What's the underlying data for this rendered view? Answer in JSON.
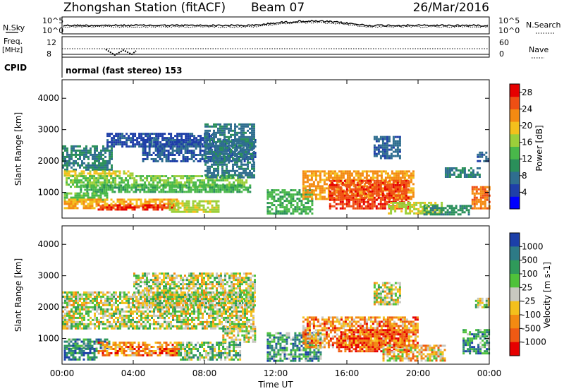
{
  "header": {
    "title": "Zhongshan Station (fitACF)",
    "beam": "Beam 07",
    "date": "26/Mar/2016"
  },
  "nsky_panel": {
    "left_label": "N.Sky",
    "left_top_tick": "10^5",
    "left_bottom_tick": "10^0",
    "right_label": "N.Search",
    "right_top_tick": "10^5",
    "right_bottom_tick": "10^0"
  },
  "freq_panel": {
    "left_label": "Freq.",
    "left_unit": "[MHz]",
    "left_top_tick": "12",
    "left_bottom_tick": "8",
    "right_label": "Nave",
    "right_top_tick": "60",
    "right_bottom_tick": "0"
  },
  "cpid_panel": {
    "label": "CPID",
    "text": "normal (fast stereo) 153"
  },
  "chart_data": [
    {
      "type": "heatmap",
      "title": "",
      "ylabel": "Slant Range [km]",
      "xlabel": "",
      "x_range_hours": [
        0,
        24
      ],
      "ylim": [
        180,
        4590
      ],
      "yticks": [
        "1000",
        "2000",
        "3000",
        "4000"
      ],
      "colorbar": {
        "label": "Power [dB]",
        "ticks": [
          "4",
          "8",
          "12",
          "16",
          "20",
          "24",
          "28"
        ],
        "range": [
          0,
          30
        ],
        "colors": [
          "#0000ff",
          "#1f3fa8",
          "#2f6e8f",
          "#2a8f5a",
          "#49b84a",
          "#9ccf3a",
          "#f4c01c",
          "#f48a12",
          "#ef4f14",
          "#e60000"
        ]
      },
      "regions": [
        {
          "t": [
            0.0,
            2.8
          ],
          "r": [
            1700,
            2500
          ],
          "level": 9
        },
        {
          "t": [
            0.1,
            4.0
          ],
          "r": [
            1500,
            1700
          ],
          "level": 19
        },
        {
          "t": [
            0.2,
            10.4
          ],
          "r": [
            1200,
            1550
          ],
          "level": 15
        },
        {
          "t": [
            1.0,
            10.6
          ],
          "r": [
            1000,
            1250
          ],
          "level": 13
        },
        {
          "t": [
            0.1,
            2.5
          ],
          "r": [
            750,
            1000
          ],
          "level": 14
        },
        {
          "t": [
            0.1,
            6.5
          ],
          "r": [
            500,
            800
          ],
          "level": 21
        },
        {
          "t": [
            2.0,
            6.3
          ],
          "r": [
            430,
            620
          ],
          "level": 27
        },
        {
          "t": [
            6.0,
            8.8
          ],
          "r": [
            380,
            750
          ],
          "level": 17
        },
        {
          "t": [
            4.5,
            10.8
          ],
          "r": [
            2000,
            2700
          ],
          "level": 6
        },
        {
          "t": [
            2.5,
            8.5
          ],
          "r": [
            2450,
            2900
          ],
          "level": 5
        },
        {
          "t": [
            8.0,
            10.8
          ],
          "r": [
            1500,
            3200
          ],
          "level": 8
        },
        {
          "t": [
            11.5,
            14.0
          ],
          "r": [
            300,
            1100
          ],
          "level": 13
        },
        {
          "t": [
            13.5,
            19.7
          ],
          "r": [
            800,
            1700
          ],
          "level": 22
        },
        {
          "t": [
            15.0,
            19.5
          ],
          "r": [
            500,
            1400
          ],
          "level": 26
        },
        {
          "t": [
            18.3,
            21.3
          ],
          "r": [
            300,
            700
          ],
          "level": 17
        },
        {
          "t": [
            20.3,
            23.0
          ],
          "r": [
            300,
            600
          ],
          "level": 10
        },
        {
          "t": [
            17.5,
            19.0
          ],
          "r": [
            2100,
            2800
          ],
          "level": 7
        },
        {
          "t": [
            23.0,
            24.0
          ],
          "r": [
            500,
            1200
          ],
          "level": 24
        },
        {
          "t": [
            23.3,
            24.0
          ],
          "r": [
            2000,
            2300
          ],
          "level": 7
        },
        {
          "t": [
            21.5,
            23.5
          ],
          "r": [
            1500,
            1800
          ],
          "level": 9
        }
      ]
    },
    {
      "type": "heatmap",
      "title": "",
      "ylabel": "Slant Range [km]",
      "xlabel": "Time UT",
      "x_range_hours": [
        0,
        24
      ],
      "xticks": [
        "00:00",
        "04:00",
        "08:00",
        "12:00",
        "16:00",
        "20:00",
        "00:00"
      ],
      "ylim": [
        180,
        4590
      ],
      "yticks": [
        "1000",
        "2000",
        "3000",
        "4000"
      ],
      "colorbar": {
        "label": "Velocity [m s-1]",
        "ticks": [
          "1000",
          "500",
          "100",
          "25",
          "-25",
          "-100",
          "-500",
          "-1000"
        ],
        "colors": [
          "#1c3fa8",
          "#2d7a86",
          "#2f9a5a",
          "#4fc23a",
          "#c8c8c0",
          "#f4c01c",
          "#f38a12",
          "#ef5a14",
          "#e60000"
        ]
      },
      "regions": [
        {
          "t": [
            0.0,
            10.8
          ],
          "r": [
            1300,
            2500
          ],
          "level": 4
        },
        {
          "t": [
            4.0,
            10.8
          ],
          "r": [
            2000,
            3100
          ],
          "level": 4
        },
        {
          "t": [
            0.1,
            2.6
          ],
          "r": [
            700,
            1000
          ],
          "level": 2
        },
        {
          "t": [
            0.1,
            2.0
          ],
          "r": [
            300,
            700
          ],
          "level": 1
        },
        {
          "t": [
            2.0,
            6.6
          ],
          "r": [
            450,
            900
          ],
          "level": 6
        },
        {
          "t": [
            6.5,
            10.0
          ],
          "r": [
            350,
            900
          ],
          "level": 3
        },
        {
          "t": [
            9.0,
            10.8
          ],
          "r": [
            900,
            1400
          ],
          "level": 4
        },
        {
          "t": [
            11.5,
            14.5
          ],
          "r": [
            300,
            1200
          ],
          "level": 2
        },
        {
          "t": [
            13.5,
            20.0
          ],
          "r": [
            700,
            1700
          ],
          "level": 6
        },
        {
          "t": [
            15.5,
            19.5
          ],
          "r": [
            600,
            1300
          ],
          "level": 7
        },
        {
          "t": [
            18.0,
            21.5
          ],
          "r": [
            300,
            800
          ],
          "level": 5
        },
        {
          "t": [
            17.5,
            19.0
          ],
          "r": [
            2100,
            2800
          ],
          "level": 4
        },
        {
          "t": [
            22.5,
            24.0
          ],
          "r": [
            500,
            1300
          ],
          "level": 2
        },
        {
          "t": [
            23.2,
            24.0
          ],
          "r": [
            2000,
            2300
          ],
          "level": 4
        }
      ]
    }
  ]
}
